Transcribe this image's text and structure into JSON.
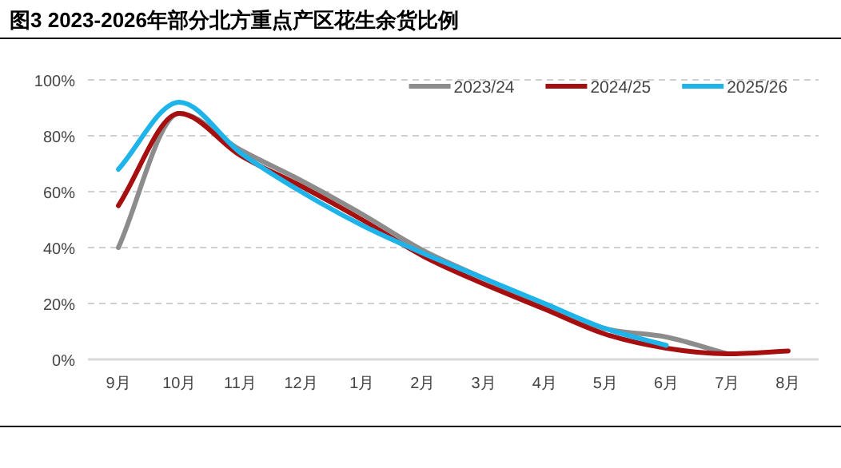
{
  "chart_data": {
    "type": "line",
    "title": "图3 2023-2026年部分北方重点产区花生余货比例",
    "categories": [
      "9月",
      "10月",
      "11月",
      "12月",
      "1月",
      "2月",
      "3月",
      "4月",
      "5月",
      "6月",
      "7月",
      "8月"
    ],
    "series": [
      {
        "name": "2023/24",
        "color": "#8c8c8c",
        "values": [
          40,
          88,
          75,
          64,
          52,
          39,
          29,
          19,
          11,
          8,
          2,
          null
        ]
      },
      {
        "name": "2024/25",
        "color": "#a50f0f",
        "values": [
          55,
          88,
          73,
          62,
          50,
          37,
          27,
          18,
          9,
          4,
          2,
          3
        ]
      },
      {
        "name": "2025/26",
        "color": "#1eb4ea",
        "values": [
          68,
          92,
          74,
          60,
          48,
          38,
          29,
          20,
          11,
          5,
          null,
          null
        ]
      }
    ],
    "ylim": [
      0,
      100
    ],
    "yticks": [
      {
        "value": 0,
        "label": "0%"
      },
      {
        "value": 20,
        "label": "20%"
      },
      {
        "value": 40,
        "label": "40%"
      },
      {
        "value": 60,
        "label": "60%"
      },
      {
        "value": 80,
        "label": "80%"
      },
      {
        "value": 100,
        "label": "100%"
      }
    ],
    "grid": "y",
    "legend": "top right"
  }
}
